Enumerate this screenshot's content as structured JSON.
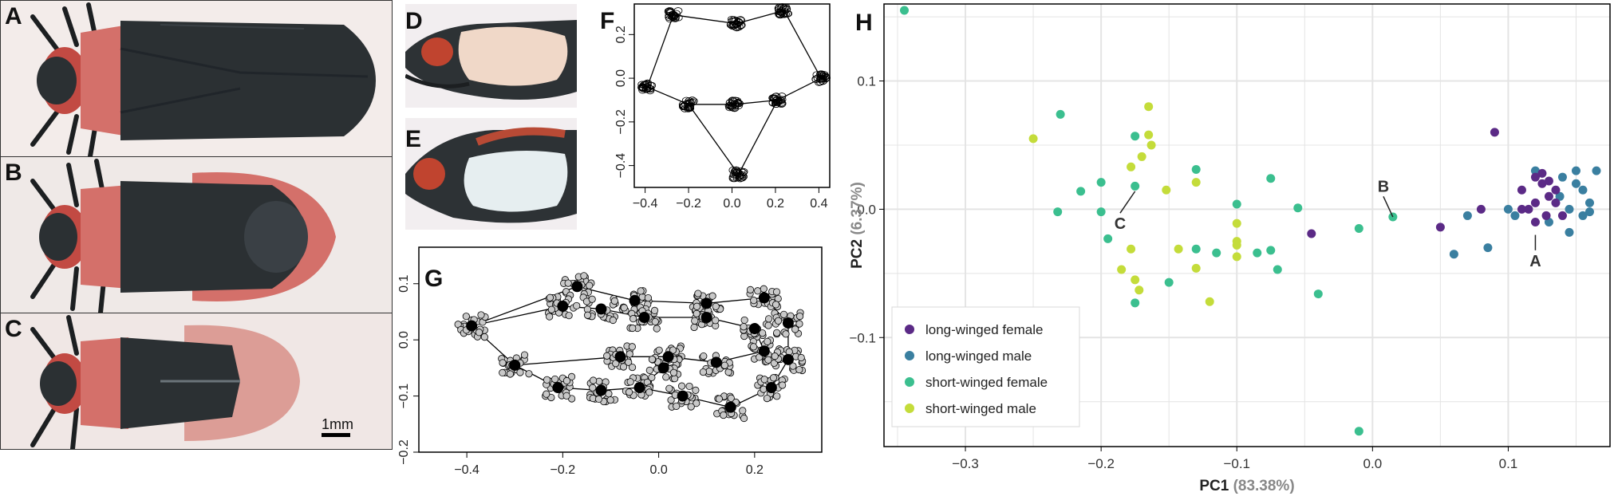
{
  "panels": {
    "a": "A",
    "b": "B",
    "c": "C",
    "d": "D",
    "e": "E",
    "f": "F",
    "g": "G",
    "h": "H"
  },
  "scale_bar": "1mm",
  "colors": {
    "long_female": "#5b2a86",
    "long_male": "#3a7fa0",
    "short_female": "#3bbf8f",
    "short_male": "#c4dc3a",
    "bug_body": "#2b3033",
    "bug_red": "#d4706a"
  },
  "chart_data": [
    {
      "type": "scatter",
      "panel": "F",
      "xlim": [
        -0.45,
        0.45
      ],
      "ylim": [
        -0.5,
        0.34
      ],
      "x_ticks": [
        -0.4,
        -0.2,
        0.0,
        0.2,
        0.4
      ],
      "y_ticks": [
        0.2,
        0.0,
        -0.2,
        -0.4
      ],
      "x_tick_labels": [
        "−0.4",
        "−0.2",
        "0.0",
        "0.2",
        "0.4"
      ],
      "y_tick_labels": [
        "0.2",
        "0.0",
        "−0.2",
        "−0.4"
      ],
      "landmarks": [
        [
          -0.27,
          0.29
        ],
        [
          0.02,
          0.25
        ],
        [
          0.24,
          0.31
        ],
        [
          0.41,
          0.0
        ],
        [
          0.21,
          -0.1
        ],
        [
          0.01,
          -0.12
        ],
        [
          -0.2,
          -0.12
        ],
        [
          -0.39,
          -0.04
        ],
        [
          0.03,
          -0.44
        ]
      ]
    },
    {
      "type": "scatter",
      "panel": "G",
      "xlim": [
        -0.5,
        0.34
      ],
      "ylim": [
        -0.2,
        0.165
      ],
      "x_ticks": [
        -0.4,
        -0.2,
        0.0,
        0.2
      ],
      "y_ticks": [
        0.1,
        0.0,
        -0.1,
        -0.2
      ],
      "x_tick_labels": [
        "−0.4",
        "−0.2",
        "0.0",
        "0.2"
      ],
      "y_tick_labels": [
        "0.1",
        "0.0",
        "−0.1",
        "−0.2"
      ],
      "landmarks": [
        [
          -0.39,
          0.025
        ],
        [
          -0.3,
          -0.045
        ],
        [
          -0.21,
          -0.085
        ],
        [
          -0.12,
          -0.09
        ],
        [
          -0.04,
          -0.085
        ],
        [
          0.05,
          -0.1
        ],
        [
          0.15,
          -0.12
        ],
        [
          0.235,
          -0.085
        ],
        [
          0.27,
          -0.035
        ],
        [
          0.27,
          0.03
        ],
        [
          0.22,
          0.075
        ],
        [
          0.1,
          0.065
        ],
        [
          -0.05,
          0.07
        ],
        [
          -0.17,
          0.095
        ],
        [
          -0.2,
          0.06
        ],
        [
          -0.12,
          0.055
        ],
        [
          -0.03,
          0.04
        ],
        [
          0.1,
          0.04
        ],
        [
          0.2,
          0.02
        ],
        [
          0.22,
          -0.02
        ],
        [
          0.12,
          -0.04
        ],
        [
          0.02,
          -0.03
        ],
        [
          -0.08,
          -0.03
        ],
        [
          0.01,
          -0.05
        ]
      ]
    },
    {
      "type": "scatter",
      "panel": "H",
      "xlabel": "PC1",
      "xlabel_pct": "(83.38%)",
      "ylabel": "PC2",
      "ylabel_pct": "(6.37%)",
      "xlim": [
        -0.36,
        0.175
      ],
      "ylim": [
        -0.185,
        0.16
      ],
      "x_ticks": [
        -0.3,
        -0.2,
        -0.1,
        0.0,
        0.1
      ],
      "y_ticks": [
        0.1,
        0.0,
        -0.1
      ],
      "x_tick_labels": [
        "−0.3",
        "−0.2",
        "−0.1",
        "0.0",
        "0.1"
      ],
      "y_tick_labels": [
        "0.1",
        "0.0",
        "−0.1"
      ],
      "grid": true,
      "legend_position": "bottom-left",
      "series": [
        {
          "name": "long-winged female",
          "color": "#5b2a86",
          "points": [
            [
              0.09,
              0.06
            ],
            [
              0.11,
              0.015
            ],
            [
              0.125,
              0.02
            ],
            [
              0.13,
              0.01
            ],
            [
              0.115,
              0.0
            ],
            [
              0.12,
              -0.01
            ],
            [
              0.135,
              0.005
            ],
            [
              0.14,
              -0.005
            ],
            [
              0.125,
              0.028
            ],
            [
              0.13,
              0.022
            ],
            [
              0.05,
              -0.014
            ],
            [
              0.08,
              0.0
            ],
            [
              0.135,
              0.015
            ],
            [
              0.12,
              0.005
            ],
            [
              -0.045,
              -0.019
            ],
            [
              0.11,
              0.0
            ],
            [
              0.12,
              0.025
            ],
            [
              0.128,
              -0.005
            ]
          ]
        },
        {
          "name": "long-winged male",
          "color": "#3a7fa0",
          "points": [
            [
              0.12,
              0.03
            ],
            [
              0.15,
              0.03
            ],
            [
              0.165,
              0.03
            ],
            [
              0.14,
              0.025
            ],
            [
              0.155,
              0.015
            ],
            [
              0.16,
              0.005
            ],
            [
              0.145,
              0.0
            ],
            [
              0.155,
              -0.005
            ],
            [
              0.16,
              -0.002
            ],
            [
              0.13,
              -0.01
            ],
            [
              0.145,
              -0.018
            ],
            [
              0.1,
              0.0
            ],
            [
              0.105,
              -0.005
            ],
            [
              0.085,
              -0.03
            ],
            [
              0.06,
              -0.035
            ],
            [
              0.07,
              -0.005
            ],
            [
              0.138,
              0.01
            ],
            [
              0.15,
              0.02
            ]
          ]
        },
        {
          "name": "short-winged female",
          "color": "#3bbf8f",
          "points": [
            [
              -0.345,
              0.155
            ],
            [
              -0.23,
              0.074
            ],
            [
              -0.175,
              0.057
            ],
            [
              -0.175,
              0.018
            ],
            [
              -0.2,
              0.021
            ],
            [
              -0.215,
              0.014
            ],
            [
              -0.232,
              -0.002
            ],
            [
              -0.2,
              -0.002
            ],
            [
              -0.195,
              -0.023
            ],
            [
              -0.13,
              0.031
            ],
            [
              -0.1,
              0.004
            ],
            [
              -0.075,
              0.024
            ],
            [
              -0.055,
              0.001
            ],
            [
              -0.13,
              -0.031
            ],
            [
              -0.115,
              -0.034
            ],
            [
              -0.15,
              -0.057
            ],
            [
              -0.175,
              -0.073
            ],
            [
              -0.085,
              -0.034
            ],
            [
              -0.075,
              -0.032
            ],
            [
              -0.07,
              -0.047
            ],
            [
              -0.04,
              -0.066
            ],
            [
              -0.01,
              -0.015
            ],
            [
              0.015,
              -0.006
            ],
            [
              -0.01,
              -0.173
            ]
          ]
        },
        {
          "name": "short-winged male",
          "color": "#c4dc3a",
          "points": [
            [
              -0.25,
              0.055
            ],
            [
              -0.165,
              0.08
            ],
            [
              -0.165,
              0.058
            ],
            [
              -0.163,
              0.05
            ],
            [
              -0.17,
              0.041
            ],
            [
              -0.178,
              0.033
            ],
            [
              -0.152,
              0.015
            ],
            [
              -0.13,
              0.021
            ],
            [
              -0.1,
              -0.011
            ],
            [
              -0.1,
              -0.025
            ],
            [
              -0.1,
              -0.028
            ],
            [
              -0.1,
              -0.037
            ],
            [
              -0.13,
              -0.046
            ],
            [
              -0.143,
              -0.031
            ],
            [
              -0.178,
              -0.031
            ],
            [
              -0.185,
              -0.047
            ],
            [
              -0.175,
              -0.055
            ],
            [
              -0.172,
              -0.063
            ],
            [
              -0.12,
              -0.072
            ]
          ]
        }
      ],
      "annotations": [
        {
          "text": "A",
          "x": 0.12,
          "y": -0.02,
          "label_x": 0.12,
          "label_y": -0.032
        },
        {
          "text": "B",
          "x": 0.015,
          "y": -0.006,
          "label_x": 0.008,
          "label_y": 0.01
        },
        {
          "text": "C",
          "x": -0.175,
          "y": 0.014,
          "label_x": -0.186,
          "label_y": -0.003
        }
      ]
    }
  ]
}
